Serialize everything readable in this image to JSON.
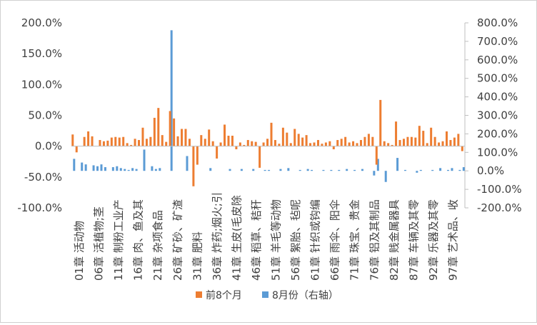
{
  "chart_data": {
    "type": "bar",
    "title": "",
    "xlabel": "",
    "ylabel": "",
    "y_left_lim": [
      -100,
      200
    ],
    "y_right_lim": [
      -200,
      800
    ],
    "y_left_ticks": [
      "-100.0%",
      "-50.0%",
      "0.0%",
      "50.0%",
      "100.0%",
      "150.0%",
      "200.0%"
    ],
    "y_right_ticks": [
      "-200.0%",
      "-100.0%",
      "0.0%",
      "100.0%",
      "200.0%",
      "300.0%",
      "400.0%",
      "500.0%",
      "600.0%",
      "700.0%",
      "800.0%"
    ],
    "gridlines": false,
    "legend_position": "bottom",
    "category_labels": [
      "01章 活动物",
      "06章 活植物;茎",
      "11章 制粉工业产",
      "16章 肉、鱼及其",
      "21章 杂项食品",
      "26章 矿砂、矿渣",
      "31章 肥料",
      "36章 炸药;烟火;引",
      "41章 生皮(毛皮除",
      "46章 稻草、秸秆",
      "51章 羊毛等动物",
      "56章 絮胎、毡呢",
      "61章 针织或钩编",
      "66章 雨伞、阳伞",
      "71章 珠宝、贵金",
      "76章 铝及其制品",
      "82章 贱金属器具",
      "87章 车辆及其零",
      "92章 乐器及其零",
      "97章 艺术品、收"
    ],
    "series": [
      {
        "name": "前8个月",
        "axis": "left",
        "color": "#ED7D31",
        "values": [
          19,
          -10,
          0,
          15,
          24,
          16,
          0,
          10,
          8,
          9,
          14,
          15,
          14,
          15,
          5,
          2,
          12,
          10,
          30,
          12,
          15,
          46,
          62,
          18,
          7,
          57,
          45,
          16,
          28,
          28,
          12,
          -65,
          -30,
          18,
          12,
          27,
          8,
          -20,
          6,
          35,
          17,
          17,
          -5,
          6,
          2,
          10,
          8,
          7,
          -35,
          6,
          12,
          38,
          10,
          4,
          30,
          22,
          5,
          28,
          20,
          14,
          18,
          5,
          6,
          10,
          4,
          6,
          8,
          -5,
          10,
          12,
          15,
          6,
          8,
          5,
          10,
          15,
          20,
          15,
          -30,
          75,
          8,
          5,
          2,
          40,
          10,
          12,
          15,
          15,
          14,
          33,
          25,
          5,
          30,
          15,
          6,
          8,
          24,
          10,
          14,
          20,
          -8
        ]
      },
      {
        "name": "8月份（右轴）",
        "axis": "right",
        "color": "#5B9BD5",
        "values": [
          65,
          0,
          45,
          35,
          0,
          30,
          25,
          35,
          20,
          0,
          20,
          25,
          15,
          10,
          5,
          15,
          10,
          0,
          115,
          0,
          25,
          10,
          15,
          0,
          0,
          760,
          0,
          0,
          0,
          80,
          0,
          0,
          0,
          0,
          0,
          15,
          0,
          0,
          0,
          0,
          10,
          0,
          0,
          10,
          0,
          0,
          10,
          0,
          0,
          5,
          5,
          0,
          0,
          10,
          0,
          15,
          0,
          0,
          5,
          0,
          10,
          5,
          0,
          0,
          5,
          0,
          5,
          0,
          5,
          0,
          10,
          0,
          5,
          0,
          10,
          0,
          0,
          -25,
          65,
          0,
          -60,
          0,
          0,
          70,
          0,
          5,
          0,
          0,
          -10,
          5,
          0,
          0,
          5,
          0,
          15,
          0,
          5,
          15,
          0,
          5,
          20
        ]
      }
    ]
  }
}
